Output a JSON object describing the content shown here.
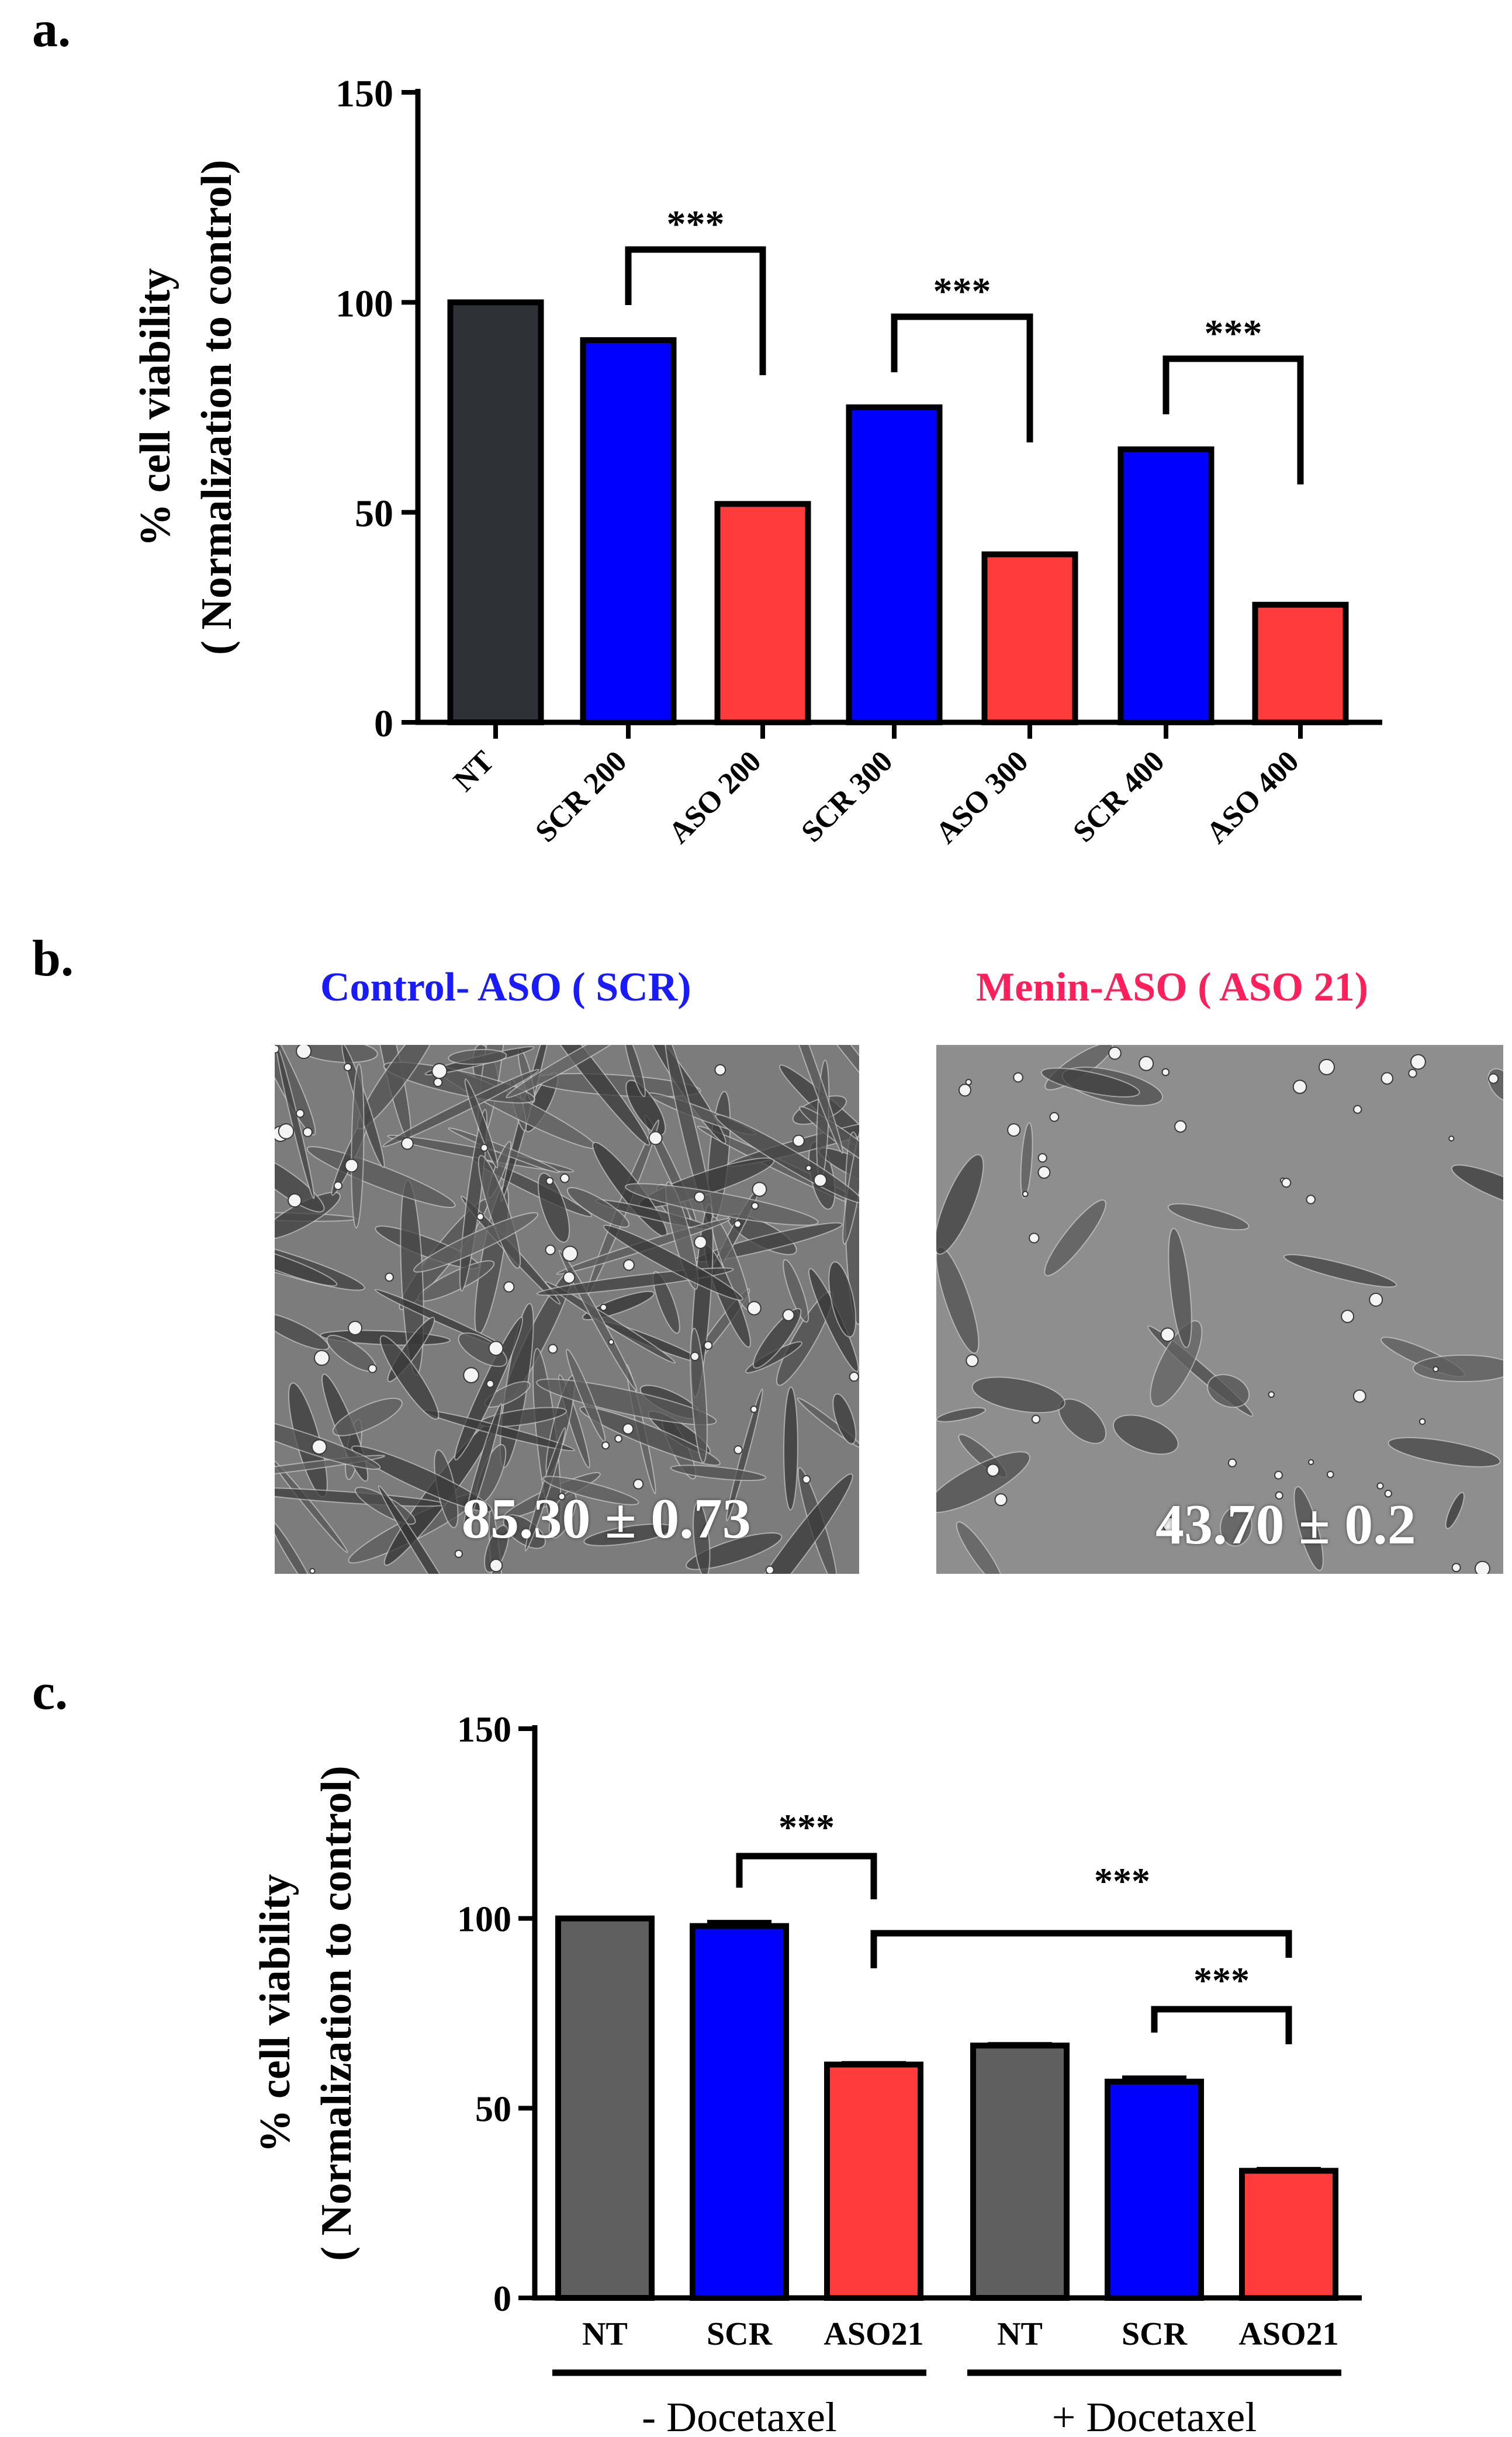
{
  "panels": {
    "a": {
      "letter": "a."
    },
    "b": {
      "letter": "b."
    },
    "c": {
      "letter": "c."
    }
  },
  "colors": {
    "nt": "#2e3236",
    "nt_c": "#5f5f5f",
    "scr": "#0000ff",
    "aso": "#ff3b3b",
    "axis": "#000000"
  },
  "chart_data": [
    {
      "type": "bar",
      "panel": "a",
      "categories": [
        "NT",
        "SCR 200",
        "ASO 200",
        "SCR 300",
        "ASO 300",
        "SCR 400",
        "ASO 400"
      ],
      "values": [
        100,
        91,
        52,
        75,
        40,
        65,
        28
      ],
      "bar_colors": [
        "nt",
        "scr",
        "aso",
        "scr",
        "aso",
        "scr",
        "aso"
      ],
      "ylabel_line1": "% cell viability",
      "ylabel_line2": "( Normalization to control)",
      "ylim": [
        0,
        150
      ],
      "yticks": [
        0,
        50,
        100,
        150
      ],
      "significance": [
        {
          "from": 1,
          "to": 2,
          "label": "***"
        },
        {
          "from": 3,
          "to": 4,
          "label": "***"
        },
        {
          "from": 5,
          "to": 6,
          "label": "***"
        }
      ]
    },
    {
      "type": "bar",
      "panel": "c",
      "categories": [
        "NT",
        "SCR",
        "ASO21",
        "NT",
        "SCR",
        "ASO21"
      ],
      "values": [
        100,
        98,
        61.5,
        66.5,
        57,
        33.5
      ],
      "errors": [
        0,
        1,
        0.3,
        0.3,
        1,
        0.4
      ],
      "bar_colors": [
        "nt_c",
        "scr",
        "aso",
        "nt_c",
        "scr",
        "aso"
      ],
      "ylabel_line1": "% cell viability",
      "ylabel_line2": "( Normalization to control)",
      "ylim": [
        0,
        150
      ],
      "yticks": [
        0,
        50,
        100,
        150
      ],
      "groups": [
        {
          "from": 0,
          "to": 2,
          "label": "- Docetaxel"
        },
        {
          "from": 3,
          "to": 5,
          "label": "+ Docetaxel"
        }
      ],
      "significance": [
        {
          "from": 1,
          "to": 2,
          "label": "***"
        },
        {
          "from": 2,
          "to": 5,
          "label": "***"
        },
        {
          "from": 4,
          "to": 5,
          "label": "***"
        }
      ]
    }
  ],
  "micrographs": [
    {
      "title": "Control- ASO ( SCR)",
      "title_color": "#1a1aff",
      "value": "85.30 ± 0.73",
      "seed": 7,
      "density": "dense"
    },
    {
      "title": "Menin-ASO ( ASO 21)",
      "title_color": "#ff1f5a",
      "value": "43.70 ± 0.2",
      "seed": 23,
      "density": "sparse"
    }
  ]
}
